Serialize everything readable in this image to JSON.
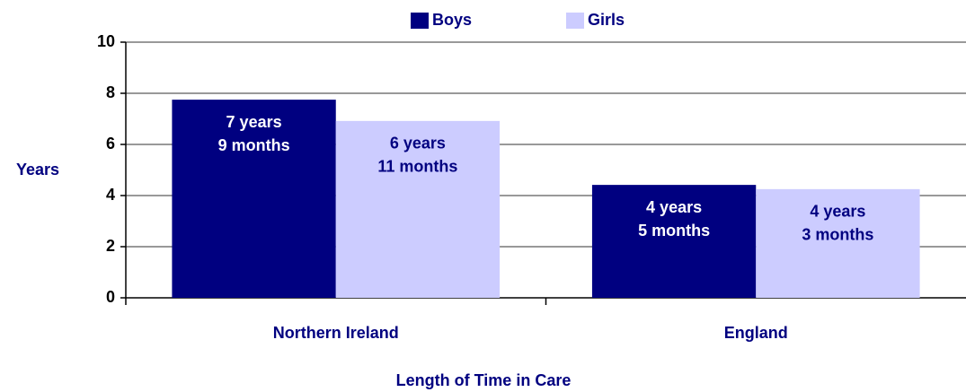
{
  "chart_data": {
    "type": "bar",
    "x_label": "Length of Time in Care",
    "y_label": "Years",
    "categories": [
      "Northern Ireland",
      "England"
    ],
    "series": [
      {
        "name": "Boys",
        "color": "#000080",
        "label_color": "#ffffff",
        "values": [
          7.75,
          4.4167
        ],
        "value_labels": [
          [
            "7 years",
            "9 months"
          ],
          [
            "4 years",
            "5 months"
          ]
        ]
      },
      {
        "name": "Girls",
        "color": "#ccccff",
        "label_color": "#000080",
        "values": [
          6.9167,
          4.25
        ],
        "value_labels": [
          [
            "6 years",
            "11 months"
          ],
          [
            "4 years",
            "3 months"
          ]
        ]
      }
    ],
    "ylim": [
      0,
      10
    ],
    "yticks": [
      0,
      2,
      4,
      6,
      8,
      10
    ],
    "grid": true,
    "legend": "top"
  }
}
